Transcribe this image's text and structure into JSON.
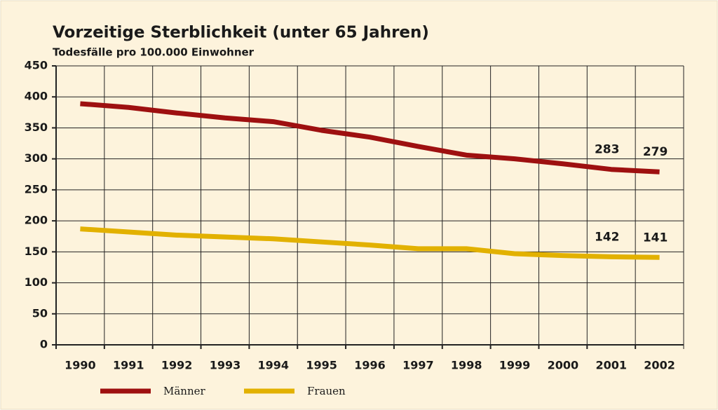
{
  "chart_data": {
    "type": "line",
    "title": "Vorzeitige Sterblichkeit (unter 65 Jahren)",
    "subtitle": "Todesfälle pro 100.000 Einwohner",
    "categories": [
      "1990",
      "1991",
      "1992",
      "1993",
      "1994",
      "1995",
      "1996",
      "1997",
      "1998",
      "1999",
      "2000",
      "2001",
      "2002"
    ],
    "series": [
      {
        "name": "Männer",
        "color": "#9e1010",
        "values": [
          389,
          383,
          374,
          366,
          360,
          346,
          335,
          320,
          306,
          300,
          292,
          283,
          279
        ],
        "label_points": [
          11,
          12
        ]
      },
      {
        "name": "Frauen",
        "color": "#e2b100",
        "values": [
          187,
          182,
          177,
          174,
          171,
          166,
          161,
          155,
          155,
          147,
          144,
          142,
          141
        ],
        "label_points": [
          11,
          12
        ]
      }
    ],
    "ylim": [
      0,
      450
    ],
    "yticks": [
      0,
      50,
      100,
      150,
      200,
      250,
      300,
      350,
      400,
      450
    ],
    "grid": true,
    "legend": "bottom"
  }
}
